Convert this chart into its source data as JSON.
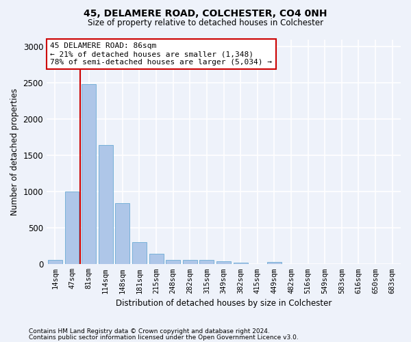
{
  "title1": "45, DELAMERE ROAD, COLCHESTER, CO4 0NH",
  "title2": "Size of property relative to detached houses in Colchester",
  "xlabel": "Distribution of detached houses by size in Colchester",
  "ylabel": "Number of detached properties",
  "footnote1": "Contains HM Land Registry data © Crown copyright and database right 2024.",
  "footnote2": "Contains public sector information licensed under the Open Government Licence v3.0.",
  "categories": [
    "14sqm",
    "47sqm",
    "81sqm",
    "114sqm",
    "148sqm",
    "181sqm",
    "215sqm",
    "248sqm",
    "282sqm",
    "315sqm",
    "349sqm",
    "382sqm",
    "415sqm",
    "449sqm",
    "482sqm",
    "516sqm",
    "549sqm",
    "583sqm",
    "616sqm",
    "650sqm",
    "683sqm"
  ],
  "values": [
    60,
    1000,
    2480,
    1640,
    840,
    305,
    140,
    60,
    60,
    60,
    40,
    25,
    0,
    30,
    0,
    0,
    0,
    0,
    0,
    0,
    0
  ],
  "bar_color": "#aec6e8",
  "bar_edge_color": "#6aaad4",
  "highlight_line_color": "#cc0000",
  "annotation_text": "45 DELAMERE ROAD: 86sqm\n← 21% of detached houses are smaller (1,348)\n78% of semi-detached houses are larger (5,034) →",
  "annotation_box_color": "#ffffff",
  "annotation_box_edge": "#cc0000",
  "red_line_x": 1.5,
  "ylim": [
    0,
    3100
  ],
  "yticks": [
    0,
    500,
    1000,
    1500,
    2000,
    2500,
    3000
  ],
  "bg_color": "#eef2fa",
  "plot_bg_color": "#eef2fa",
  "grid_color": "#ffffff"
}
